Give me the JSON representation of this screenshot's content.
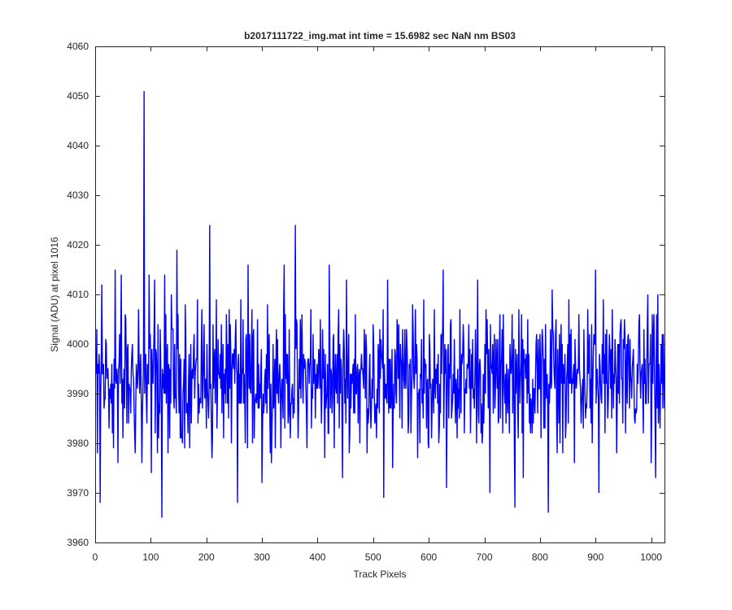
{
  "chart_data": {
    "type": "line",
    "title": "b2017111722_img.mat int time = 15.6982 sec  NaN nm BS03",
    "xlabel": "Track Pixels",
    "ylabel": "Signal (ADU) at pixel 1016",
    "xlim": [
      0,
      1024
    ],
    "ylim": [
      3960,
      4060
    ],
    "xticks": [
      0,
      100,
      200,
      300,
      400,
      500,
      600,
      700,
      800,
      900,
      1000
    ],
    "yticks": [
      3960,
      3970,
      3980,
      3990,
      4000,
      4010,
      4020,
      4030,
      4040,
      4050,
      4060
    ],
    "grid": false,
    "legend": "none",
    "series": [
      {
        "color": "#0000ff",
        "baseline": 3993,
        "noise_amplitude": 6,
        "n_points": 1024,
        "x": [
          1,
          4,
          6,
          9,
          12,
          16,
          20,
          25,
          30,
          33,
          36,
          41,
          47,
          50,
          55,
          60,
          66,
          72,
          78,
          84,
          88,
          93,
          97,
          101,
          107,
          112,
          117,
          120,
          125,
          131,
          137,
          142,
          147,
          155,
          162,
          170,
          178,
          185,
          192,
          200,
          206,
          210,
          218,
          228,
          236,
          245,
          252,
          256,
          262,
          270,
          275,
          283,
          292,
          300,
          310,
          318,
          326,
          334,
          340,
          352,
          360,
          365,
          372,
          380,
          388,
          396,
          405,
          413,
          421,
          430,
          438,
          445,
          452,
          460,
          468,
          476,
          484,
          492,
          500,
          506,
          514,
          519,
          526,
          535,
          543,
          552,
          560,
          568,
          576,
          584,
          591,
          600,
          610,
          619,
          626,
          632,
          640,
          648,
          656,
          664,
          672,
          680,
          688,
          696,
          703,
          710,
          718,
          726,
          734,
          742,
          750,
          755,
          762,
          770,
          778,
          786,
          794,
          802,
          810,
          815,
          822,
          830,
          838,
          846,
          854,
          862,
          870,
          878,
          886,
          894,
          900,
          906,
          914,
          922,
          930,
          938,
          946,
          954,
          962,
          970,
          978,
          986,
          994,
          1000,
          1004,
          1008,
          1012,
          1016,
          1020,
          1024
        ],
        "y": [
          3995,
          3978,
          3994,
          3968,
          4012,
          3987,
          4000,
          3983,
          3996,
          3979,
          4015,
          3976,
          4014,
          3981,
          4005,
          3984,
          3998,
          3978,
          4007,
          3976,
          4051,
          3984,
          4014,
          3974,
          4013,
          3978,
          4003,
          3965,
          4014,
          3978,
          4010,
          3987,
          4019,
          3981,
          4008,
          3979,
          4002,
          3984,
          4007,
          3983,
          4024,
          3977,
          4009,
          3986,
          4006,
          3980,
          4001,
          3968,
          4009,
          3980,
          4016,
          3980,
          4005,
          3972,
          4008,
          3983,
          4003,
          3979,
          4016,
          3988,
          4024,
          3981,
          4006,
          3986,
          4007,
          3985,
          4005,
          3977,
          4016,
          3979,
          4007,
          3973,
          4013,
          3987,
          4006,
          3980,
          4003,
          3986,
          4004,
          3981,
          4001,
          3969,
          4013,
          3975,
          4005,
          3983,
          4003,
          3982,
          4007,
          3980,
          4009,
          3979,
          4007,
          3983,
          4015,
          3971,
          4005,
          3984,
          4007,
          3982,
          4004,
          3989,
          4013,
          3980,
          4007,
          3970,
          4002,
          3985,
          4006,
          3986,
          4006,
          3967,
          4007,
          3973,
          4005,
          3982,
          4002,
          3981,
          4004,
          3966,
          4011,
          3985,
          4004,
          3981,
          4002,
          3976,
          4006,
          3983,
          4007,
          3980,
          4015,
          3970,
          4009,
          3985,
          4007,
          3978,
          4005,
          3982,
          4001,
          3985,
          4004,
          3982,
          4010,
          3976,
          4002,
          3973,
          4010,
          3983,
          4002,
          3987
        ]
      }
    ]
  }
}
